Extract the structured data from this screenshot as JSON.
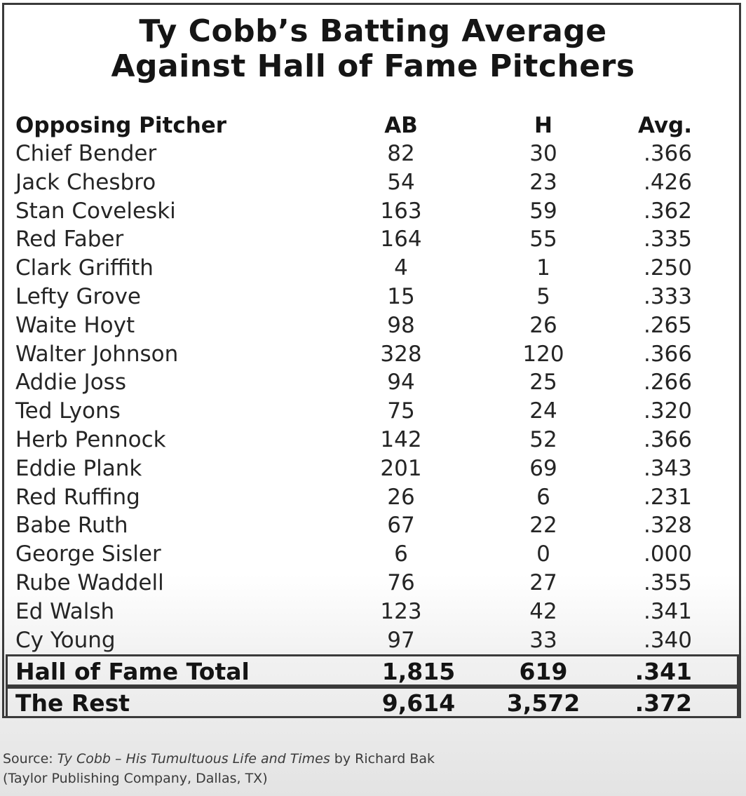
{
  "title": {
    "line1": "Ty Cobb’s Batting Average",
    "line2": "Against Hall of Fame Pitchers"
  },
  "table": {
    "headers": {
      "pitcher": "Opposing Pitcher",
      "ab": "AB",
      "h": "H",
      "avg": "Avg."
    },
    "rows": [
      {
        "pitcher": "Chief Bender",
        "ab": "82",
        "h": "30",
        "avg": ".366"
      },
      {
        "pitcher": "Jack Chesbro",
        "ab": "54",
        "h": "23",
        "avg": ".426"
      },
      {
        "pitcher": "Stan Coveleski",
        "ab": "163",
        "h": "59",
        "avg": ".362"
      },
      {
        "pitcher": "Red Faber",
        "ab": "164",
        "h": "55",
        "avg": ".335"
      },
      {
        "pitcher": "Clark Griffith",
        "ab": "4",
        "h": "1",
        "avg": ".250"
      },
      {
        "pitcher": "Lefty Grove",
        "ab": "15",
        "h": "5",
        "avg": ".333"
      },
      {
        "pitcher": "Waite Hoyt",
        "ab": "98",
        "h": "26",
        "avg": ".265"
      },
      {
        "pitcher": "Walter Johnson",
        "ab": "328",
        "h": "120",
        "avg": ".366"
      },
      {
        "pitcher": "Addie Joss",
        "ab": "94",
        "h": "25",
        "avg": ".266"
      },
      {
        "pitcher": "Ted Lyons",
        "ab": "75",
        "h": "24",
        "avg": ".320"
      },
      {
        "pitcher": "Herb Pennock",
        "ab": "142",
        "h": "52",
        "avg": ".366"
      },
      {
        "pitcher": "Eddie Plank",
        "ab": "201",
        "h": "69",
        "avg": ".343"
      },
      {
        "pitcher": "Red Ruffing",
        "ab": "26",
        "h": "6",
        "avg": ".231"
      },
      {
        "pitcher": "Babe Ruth",
        "ab": "67",
        "h": "22",
        "avg": ".328"
      },
      {
        "pitcher": "George Sisler",
        "ab": "6",
        "h": "0",
        "avg": ".000"
      },
      {
        "pitcher": "Rube Waddell",
        "ab": "76",
        "h": "27",
        "avg": ".355"
      },
      {
        "pitcher": "Ed Walsh",
        "ab": "123",
        "h": "42",
        "avg": ".341"
      },
      {
        "pitcher": "Cy Young",
        "ab": "97",
        "h": "33",
        "avg": ".340"
      }
    ],
    "totals": [
      {
        "label": "Hall of Fame Total",
        "ab": "1,815",
        "h": "619",
        "avg": ".341"
      },
      {
        "label": "The Rest",
        "ab": "9,614",
        "h": "3,572",
        "avg": ".372"
      }
    ]
  },
  "source": {
    "prefix": "Source: ",
    "book": "Ty Cobb – His Tumultuous Life and Times",
    "suffix": " by Richard Bak",
    "line2": "(Taylor Publishing Company, Dallas, TX)"
  }
}
